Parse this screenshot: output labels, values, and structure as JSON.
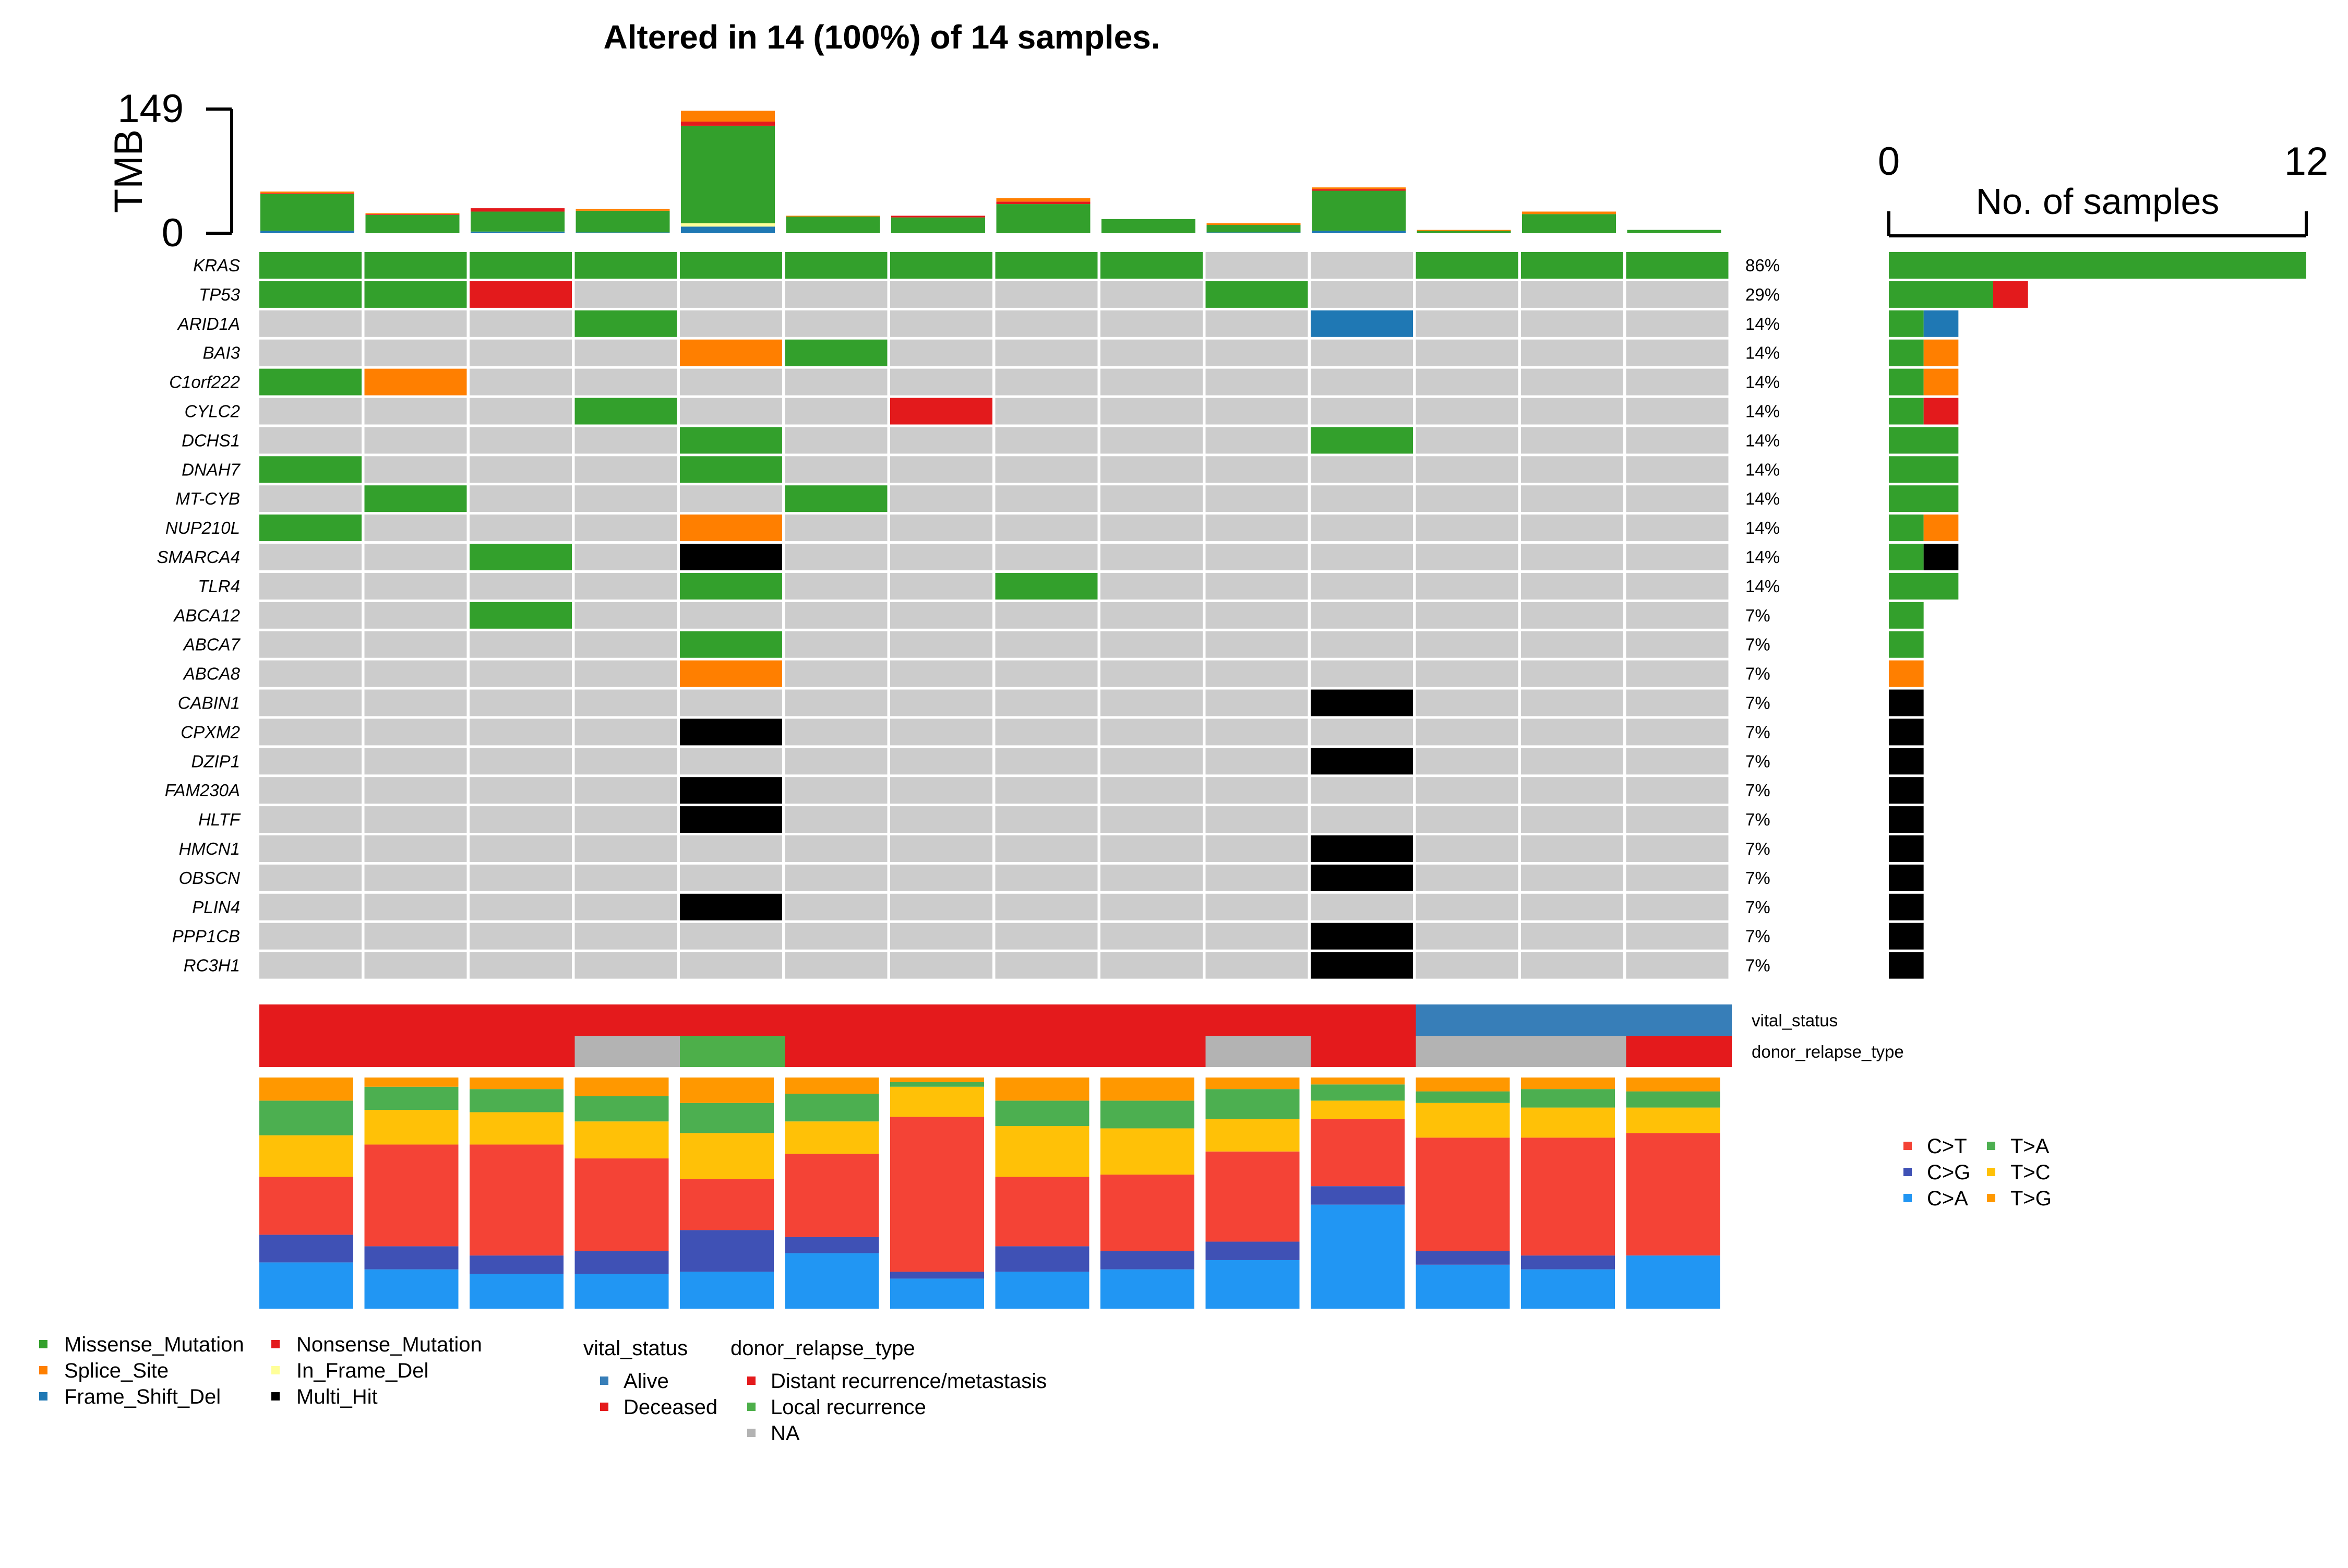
{
  "title": "Altered in 14 (100%) of 14 samples.",
  "chart_data": {
    "type": "oncoplot",
    "colors": {
      "Missense_Mutation": "#33A02C",
      "Nonsense_Mutation": "#E31A1C",
      "Splice_Site": "#FF7F00",
      "In_Frame_Del": "#FFFF99",
      "Frame_Shift_Del": "#1F78B4",
      "Multi_Hit": "#000000",
      "none": "#CCCCCC",
      "Alive": "#377EB8",
      "Deceased": "#E41A1C",
      "Distant recurrence/metastasis": "#E41A1C",
      "Local recurrence": "#4DAF4A",
      "NA": "#B3B3B3",
      "C>T": "#F44336",
      "C>G": "#3F51B5",
      "C>A": "#2196F3",
      "T>A": "#4CAF50",
      "T>C": "#FFC107",
      "T>G": "#FF9800"
    },
    "tmb": {
      "label": "TMB",
      "ticks": [
        "149",
        "0"
      ],
      "max": 149,
      "samples": [
        {
          "Missense_Mutation": 44,
          "Splice_Site": 2,
          "Nonsense_Mutation": 1,
          "Frame_Shift_Del": 3
        },
        {
          "Missense_Mutation": 22,
          "Splice_Site": 1,
          "Nonsense_Mutation": 1
        },
        {
          "Missense_Mutation": 24,
          "Nonsense_Mutation": 4,
          "Frame_Shift_Del": 2
        },
        {
          "Missense_Mutation": 26,
          "Splice_Site": 2,
          "Frame_Shift_Del": 1
        },
        {
          "Frame_Shift_Del": 8,
          "In_Frame_Del": 4,
          "Missense_Mutation": 117,
          "Nonsense_Mutation": 5,
          "Splice_Site": 13
        },
        {
          "Missense_Mutation": 20,
          "Splice_Site": 1
        },
        {
          "Missense_Mutation": 19,
          "Nonsense_Mutation": 2
        },
        {
          "Missense_Mutation": 35,
          "Nonsense_Mutation": 3,
          "Splice_Site": 4
        },
        {
          "Missense_Mutation": 17
        },
        {
          "Frame_Shift_Del": 1,
          "Missense_Mutation": 9,
          "Splice_Site": 2
        },
        {
          "Frame_Shift_Del": 3,
          "Missense_Mutation": 48,
          "Splice_Site": 2,
          "Nonsense_Mutation": 2
        },
        {
          "Missense_Mutation": 3,
          "Splice_Site": 1
        },
        {
          "Missense_Mutation": 23,
          "Splice_Site": 3
        },
        {
          "Missense_Mutation": 4
        }
      ]
    },
    "genes": [
      {
        "name": "KRAS",
        "pct": "86%",
        "cells": [
          "M",
          "M",
          "M",
          "M",
          "M",
          "M",
          "M",
          "M",
          "M",
          "",
          "",
          "M",
          "M",
          "M"
        ]
      },
      {
        "name": "TP53",
        "pct": "29%",
        "cells": [
          "M",
          "M",
          "N",
          "",
          "",
          "",
          "",
          "",
          "",
          "M",
          "",
          "",
          "",
          ""
        ]
      },
      {
        "name": "ARID1A",
        "pct": "14%",
        "cells": [
          "",
          "",
          "",
          "M",
          "",
          "",
          "",
          "",
          "",
          "",
          "F",
          "",
          "",
          ""
        ]
      },
      {
        "name": "BAI3",
        "pct": "14%",
        "cells": [
          "",
          "",
          "",
          "",
          "S",
          "M",
          "",
          "",
          "",
          "",
          "",
          "",
          "",
          ""
        ]
      },
      {
        "name": "C1orf222",
        "pct": "14%",
        "cells": [
          "M",
          "S",
          "",
          "",
          "",
          "",
          "",
          "",
          "",
          "",
          "",
          "",
          "",
          ""
        ]
      },
      {
        "name": "CYLC2",
        "pct": "14%",
        "cells": [
          "",
          "",
          "",
          "M",
          "",
          "",
          "N",
          "",
          "",
          "",
          "",
          "",
          "",
          ""
        ]
      },
      {
        "name": "DCHS1",
        "pct": "14%",
        "cells": [
          "",
          "",
          "",
          "",
          "M",
          "",
          "",
          "",
          "",
          "",
          "M",
          "",
          "",
          ""
        ]
      },
      {
        "name": "DNAH7",
        "pct": "14%",
        "cells": [
          "M",
          "",
          "",
          "",
          "M",
          "",
          "",
          "",
          "",
          "",
          "",
          "",
          "",
          ""
        ]
      },
      {
        "name": "MT-CYB",
        "pct": "14%",
        "cells": [
          "",
          "M",
          "",
          "",
          "",
          "M",
          "",
          "",
          "",
          "",
          "",
          "",
          "",
          ""
        ]
      },
      {
        "name": "NUP210L",
        "pct": "14%",
        "cells": [
          "M",
          "",
          "",
          "",
          "S",
          "",
          "",
          "",
          "",
          "",
          "",
          "",
          "",
          ""
        ]
      },
      {
        "name": "SMARCA4",
        "pct": "14%",
        "cells": [
          "",
          "",
          "M",
          "",
          "X",
          "",
          "",
          "",
          "",
          "",
          "",
          "",
          "",
          ""
        ]
      },
      {
        "name": "TLR4",
        "pct": "14%",
        "cells": [
          "",
          "",
          "",
          "",
          "M",
          "",
          "",
          "M",
          "",
          "",
          "",
          "",
          "",
          ""
        ]
      },
      {
        "name": "ABCA12",
        "pct": "7%",
        "cells": [
          "",
          "",
          "M",
          "",
          "",
          "",
          "",
          "",
          "",
          "",
          "",
          "",
          "",
          ""
        ]
      },
      {
        "name": "ABCA7",
        "pct": "7%",
        "cells": [
          "",
          "",
          "",
          "",
          "M",
          "",
          "",
          "",
          "",
          "",
          "",
          "",
          "",
          ""
        ]
      },
      {
        "name": "ABCA8",
        "pct": "7%",
        "cells": [
          "",
          "",
          "",
          "",
          "S",
          "",
          "",
          "",
          "",
          "",
          "",
          "",
          "",
          ""
        ]
      },
      {
        "name": "CABIN1",
        "pct": "7%",
        "cells": [
          "",
          "",
          "",
          "",
          "",
          "",
          "",
          "",
          "",
          "",
          "X",
          "",
          "",
          ""
        ]
      },
      {
        "name": "CPXM2",
        "pct": "7%",
        "cells": [
          "",
          "",
          "",
          "",
          "X",
          "",
          "",
          "",
          "",
          "",
          "",
          "",
          "",
          ""
        ]
      },
      {
        "name": "DZIP1",
        "pct": "7%",
        "cells": [
          "",
          "",
          "",
          "",
          "",
          "",
          "",
          "",
          "",
          "",
          "X",
          "",
          "",
          ""
        ]
      },
      {
        "name": "FAM230A",
        "pct": "7%",
        "cells": [
          "",
          "",
          "",
          "",
          "X",
          "",
          "",
          "",
          "",
          "",
          "",
          "",
          "",
          ""
        ]
      },
      {
        "name": "HLTF",
        "pct": "7%",
        "cells": [
          "",
          "",
          "",
          "",
          "X",
          "",
          "",
          "",
          "",
          "",
          "",
          "",
          "",
          ""
        ]
      },
      {
        "name": "HMCN1",
        "pct": "7%",
        "cells": [
          "",
          "",
          "",
          "",
          "",
          "",
          "",
          "",
          "",
          "",
          "X",
          "",
          "",
          ""
        ]
      },
      {
        "name": "OBSCN",
        "pct": "7%",
        "cells": [
          "",
          "",
          "",
          "",
          "",
          "",
          "",
          "",
          "",
          "",
          "X",
          "",
          "",
          ""
        ]
      },
      {
        "name": "PLIN4",
        "pct": "7%",
        "cells": [
          "",
          "",
          "",
          "",
          "X",
          "",
          "",
          "",
          "",
          "",
          "",
          "",
          "",
          ""
        ]
      },
      {
        "name": "PPP1CB",
        "pct": "7%",
        "cells": [
          "",
          "",
          "",
          "",
          "",
          "",
          "",
          "",
          "",
          "",
          "X",
          "",
          "",
          ""
        ]
      },
      {
        "name": "RC3H1",
        "pct": "7%",
        "cells": [
          "",
          "",
          "",
          "",
          "",
          "",
          "",
          "",
          "",
          "",
          "X",
          "",
          "",
          ""
        ]
      }
    ],
    "cell_codes": {
      "M": "Missense_Mutation",
      "N": "Nonsense_Mutation",
      "S": "Splice_Site",
      "F": "Frame_Shift_Del",
      "I": "In_Frame_Del",
      "X": "Multi_Hit"
    },
    "gene_bar": {
      "axis_label": "No. of samples",
      "ticks": [
        "0",
        "12"
      ],
      "max": 12,
      "counts": [
        [
          [
            "Missense_Mutation",
            12
          ]
        ],
        [
          [
            "Missense_Mutation",
            3
          ],
          [
            "Nonsense_Mutation",
            1
          ]
        ],
        [
          [
            "Missense_Mutation",
            1
          ],
          [
            "Frame_Shift_Del",
            1
          ]
        ],
        [
          [
            "Missense_Mutation",
            1
          ],
          [
            "Splice_Site",
            1
          ]
        ],
        [
          [
            "Missense_Mutation",
            1
          ],
          [
            "Splice_Site",
            1
          ]
        ],
        [
          [
            "Missense_Mutation",
            1
          ],
          [
            "Nonsense_Mutation",
            1
          ]
        ],
        [
          [
            "Missense_Mutation",
            2
          ]
        ],
        [
          [
            "Missense_Mutation",
            2
          ]
        ],
        [
          [
            "Missense_Mutation",
            2
          ]
        ],
        [
          [
            "Missense_Mutation",
            1
          ],
          [
            "Splice_Site",
            1
          ]
        ],
        [
          [
            "Missense_Mutation",
            1
          ],
          [
            "Multi_Hit",
            1
          ]
        ],
        [
          [
            "Missense_Mutation",
            2
          ]
        ],
        [
          [
            "Missense_Mutation",
            1
          ]
        ],
        [
          [
            "Missense_Mutation",
            1
          ]
        ],
        [
          [
            "Splice_Site",
            1
          ]
        ],
        [
          [
            "Multi_Hit",
            1
          ]
        ],
        [
          [
            "Multi_Hit",
            1
          ]
        ],
        [
          [
            "Multi_Hit",
            1
          ]
        ],
        [
          [
            "Multi_Hit",
            1
          ]
        ],
        [
          [
            "Multi_Hit",
            1
          ]
        ],
        [
          [
            "Multi_Hit",
            1
          ]
        ],
        [
          [
            "Multi_Hit",
            1
          ]
        ],
        [
          [
            "Multi_Hit",
            1
          ]
        ],
        [
          [
            "Multi_Hit",
            1
          ]
        ],
        [
          [
            "Multi_Hit",
            1
          ]
        ]
      ]
    },
    "annotations": [
      {
        "name": "vital_status",
        "values": [
          "Deceased",
          "Deceased",
          "Deceased",
          "Deceased",
          "Deceased",
          "Deceased",
          "Deceased",
          "Deceased",
          "Deceased",
          "Deceased",
          "Deceased",
          "Alive",
          "Alive",
          "Alive"
        ]
      },
      {
        "name": "donor_relapse_type",
        "values": [
          "Distant recurrence/metastasis",
          "Distant recurrence/metastasis",
          "Distant recurrence/metastasis",
          "NA",
          "Local recurrence",
          "Distant recurrence/metastasis",
          "Distant recurrence/metastasis",
          "Distant recurrence/metastasis",
          "Distant recurrence/metastasis",
          "NA",
          "Distant recurrence/metastasis",
          "NA",
          "NA",
          "Distant recurrence/metastasis"
        ]
      }
    ],
    "titv": {
      "order": [
        "C>A",
        "C>G",
        "C>T",
        "T>C",
        "T>A",
        "T>G"
      ],
      "fractions": [
        [
          0.2,
          0.12,
          0.25,
          0.18,
          0.15,
          0.1
        ],
        [
          0.17,
          0.1,
          0.44,
          0.15,
          0.1,
          0.04
        ],
        [
          0.15,
          0.08,
          0.48,
          0.14,
          0.1,
          0.05
        ],
        [
          0.15,
          0.1,
          0.4,
          0.16,
          0.11,
          0.08
        ],
        [
          0.16,
          0.18,
          0.22,
          0.2,
          0.13,
          0.11
        ],
        [
          0.24,
          0.07,
          0.36,
          0.14,
          0.12,
          0.07
        ],
        [
          0.13,
          0.03,
          0.67,
          0.13,
          0.02,
          0.02
        ],
        [
          0.16,
          0.11,
          0.3,
          0.22,
          0.11,
          0.1
        ],
        [
          0.17,
          0.08,
          0.33,
          0.2,
          0.12,
          0.1
        ],
        [
          0.21,
          0.08,
          0.39,
          0.14,
          0.13,
          0.05
        ],
        [
          0.45,
          0.08,
          0.29,
          0.08,
          0.07,
          0.03
        ],
        [
          0.19,
          0.06,
          0.49,
          0.15,
          0.05,
          0.06
        ],
        [
          0.17,
          0.06,
          0.51,
          0.13,
          0.08,
          0.05
        ],
        [
          0.23,
          0.0,
          0.53,
          0.11,
          0.07,
          0.06
        ]
      ],
      "legend": [
        "C>T",
        "T>A",
        "C>G",
        "T>C",
        "C>A",
        "T>G"
      ]
    },
    "legends": {
      "variant_classes": [
        "Missense_Mutation",
        "Nonsense_Mutation",
        "Splice_Site",
        "In_Frame_Del",
        "Frame_Shift_Del",
        "Multi_Hit"
      ],
      "vital_status_title": "vital_status",
      "vital_status_levels": [
        "Alive",
        "Deceased"
      ],
      "relapse_title": "donor_relapse_type",
      "relapse_levels": [
        "Distant recurrence/metastasis",
        "Local recurrence",
        "NA"
      ]
    }
  }
}
